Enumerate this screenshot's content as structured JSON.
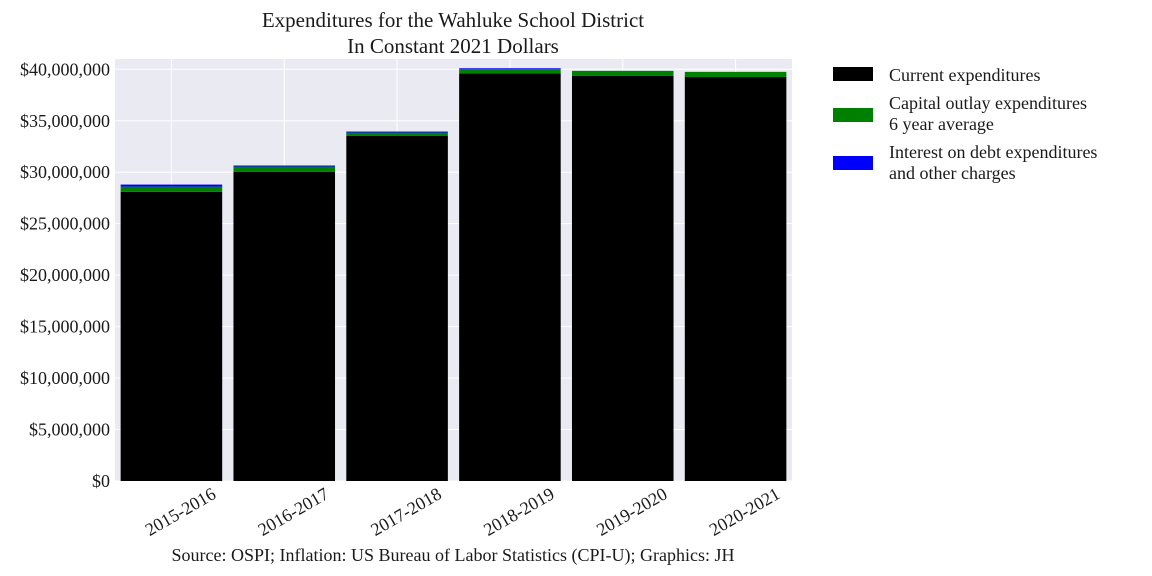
{
  "chart_data": {
    "type": "bar",
    "stacked": true,
    "title": [
      "Expenditures for the Wahluke School District",
      "In Constant 2021 Dollars"
    ],
    "xlabel": "",
    "ylabel": "",
    "categories": [
      "2015-2016",
      "2016-2017",
      "2017-2018",
      "2018-2019",
      "2019-2020",
      "2020-2021"
    ],
    "series": [
      {
        "name": "Current expenditures",
        "color": "#000000",
        "values": [
          28100000,
          30050000,
          33550000,
          39600000,
          39350000,
          39250000
        ]
      },
      {
        "name": [
          "Capital outlay expenditures",
          "6 year average"
        ],
        "color": "#008000",
        "values": [
          500000,
          500000,
          300000,
          400000,
          500000,
          500000
        ]
      },
      {
        "name": [
          "Interest on debt expenditures",
          "and other charges"
        ],
        "color": "#0000ff",
        "values": [
          200000,
          100000,
          100000,
          100000,
          0,
          0
        ]
      }
    ],
    "ylim": [
      0,
      41000000
    ],
    "yticks": [
      0,
      5000000,
      10000000,
      15000000,
      20000000,
      25000000,
      30000000,
      35000000,
      40000000
    ],
    "ytick_labels": [
      "$0",
      "$5,000,000",
      "$10,000,000",
      "$15,000,000",
      "$20,000,000",
      "$25,000,000",
      "$30,000,000",
      "$35,000,000",
      "$40,000,000"
    ],
    "grid": true,
    "legend_position": "outside-right",
    "plot_background": "#eaeaf2",
    "source": "Source: OSPI; Inflation: US Bureau of Labor Statistics (CPI-U); Graphics: JH"
  }
}
